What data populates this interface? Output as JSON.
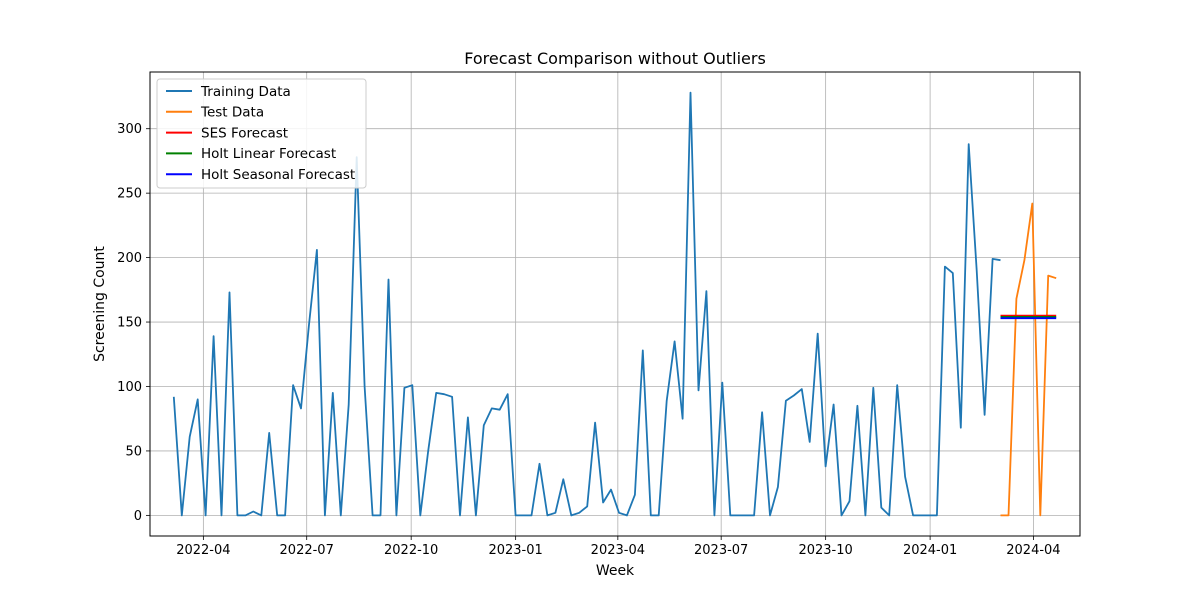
{
  "chart_data": {
    "type": "line",
    "title": "Forecast Comparison without Outliers",
    "xlabel": "Week",
    "ylabel": "Screening Count",
    "x_range": [
      "2022-02-13",
      "2024-05-12"
    ],
    "ylim": [
      -16,
      344
    ],
    "x_ticks": [
      "2022-04-01",
      "2022-07-01",
      "2022-10-01",
      "2023-01-01",
      "2023-04-01",
      "2023-07-01",
      "2023-10-01",
      "2024-01-01",
      "2024-04-01"
    ],
    "x_tick_labels": [
      "2022-04",
      "2022-07",
      "2022-10",
      "2023-01",
      "2023-04",
      "2023-07",
      "2023-10",
      "2024-01",
      "2024-04"
    ],
    "y_ticks": [
      0,
      50,
      100,
      150,
      200,
      250,
      300
    ],
    "y_tick_labels": [
      "0",
      "50",
      "100",
      "150",
      "200",
      "250",
      "300"
    ],
    "grid": true,
    "legend_position": "top-left",
    "series": [
      {
        "name": "Training Data",
        "color": "#1f77b4",
        "start_date": "2022-03-06",
        "step_days": 7,
        "values": [
          92,
          0,
          61,
          90,
          0,
          139,
          0,
          173,
          0,
          0,
          3,
          0,
          64,
          0,
          0,
          101,
          83,
          148,
          206,
          0,
          95,
          0,
          86,
          278,
          100,
          0,
          0,
          183,
          0,
          99,
          101,
          0,
          50,
          95,
          94,
          92,
          0,
          76,
          0,
          70,
          83,
          82,
          94,
          0,
          0,
          0,
          40,
          0,
          2,
          28,
          0,
          2,
          7,
          72,
          10,
          20,
          2,
          0,
          16,
          128,
          0,
          0,
          89,
          135,
          75,
          328,
          97,
          174,
          0,
          103,
          0,
          0,
          0,
          0,
          80,
          0,
          22,
          89,
          93,
          98,
          57,
          141,
          38,
          86,
          0,
          11,
          85,
          0,
          99,
          6,
          0,
          101,
          30,
          0,
          0,
          0,
          0,
          193,
          188,
          68,
          288,
          190,
          78,
          199,
          198
        ]
      },
      {
        "name": "Test Data",
        "color": "#ff7f0e",
        "start_date": "2024-03-03",
        "step_days": 7,
        "values": [
          0,
          0,
          168,
          198,
          242,
          0,
          186,
          184
        ]
      },
      {
        "name": "SES Forecast",
        "color": "#ff0000",
        "start_date": "2024-03-03",
        "step_days": 7,
        "values": [
          155,
          155,
          155,
          155,
          155,
          155,
          155,
          155
        ]
      },
      {
        "name": "Holt Linear Forecast",
        "color": "#008000",
        "start_date": "2024-03-03",
        "step_days": 7,
        "values": [
          154,
          154,
          154,
          154,
          154,
          154,
          154,
          154
        ]
      },
      {
        "name": "Holt Seasonal Forecast",
        "color": "#0000ff",
        "start_date": "2024-03-03",
        "step_days": 7,
        "values": [
          153,
          153,
          153,
          153,
          153,
          153,
          153,
          153
        ]
      }
    ]
  }
}
